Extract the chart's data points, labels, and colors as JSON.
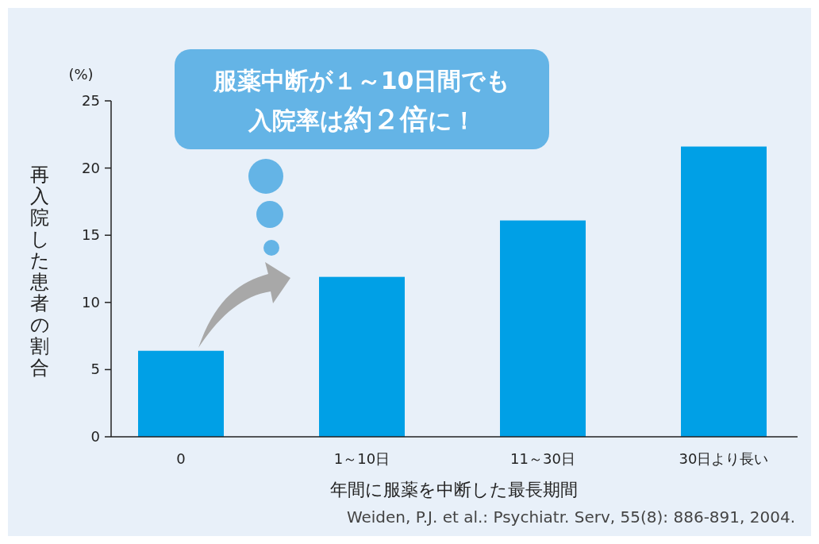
{
  "chart_data": {
    "type": "bar",
    "xlabel": "年間に服薬を中断した最長期間",
    "ylabel": "再入院した患者の割合",
    "categories": [
      "0",
      "1～10日",
      "11～30日",
      "30日より長い"
    ],
    "values": [
      6.4,
      11.9,
      16.1,
      21.6
    ],
    "color": "#00a0e6",
    "ylim": [
      0,
      25
    ],
    "yticks": [
      0,
      5,
      10,
      15,
      20,
      25
    ],
    "grid": false,
    "annotations": [
      "(%)",
      "服薬中断が１～10日間でも",
      "入院率は**約２倍**に！",
      "Weiden, P.J. et al.: Psychiatr. Serv, 55(8): 886-891, 2004."
    ]
  }
}
